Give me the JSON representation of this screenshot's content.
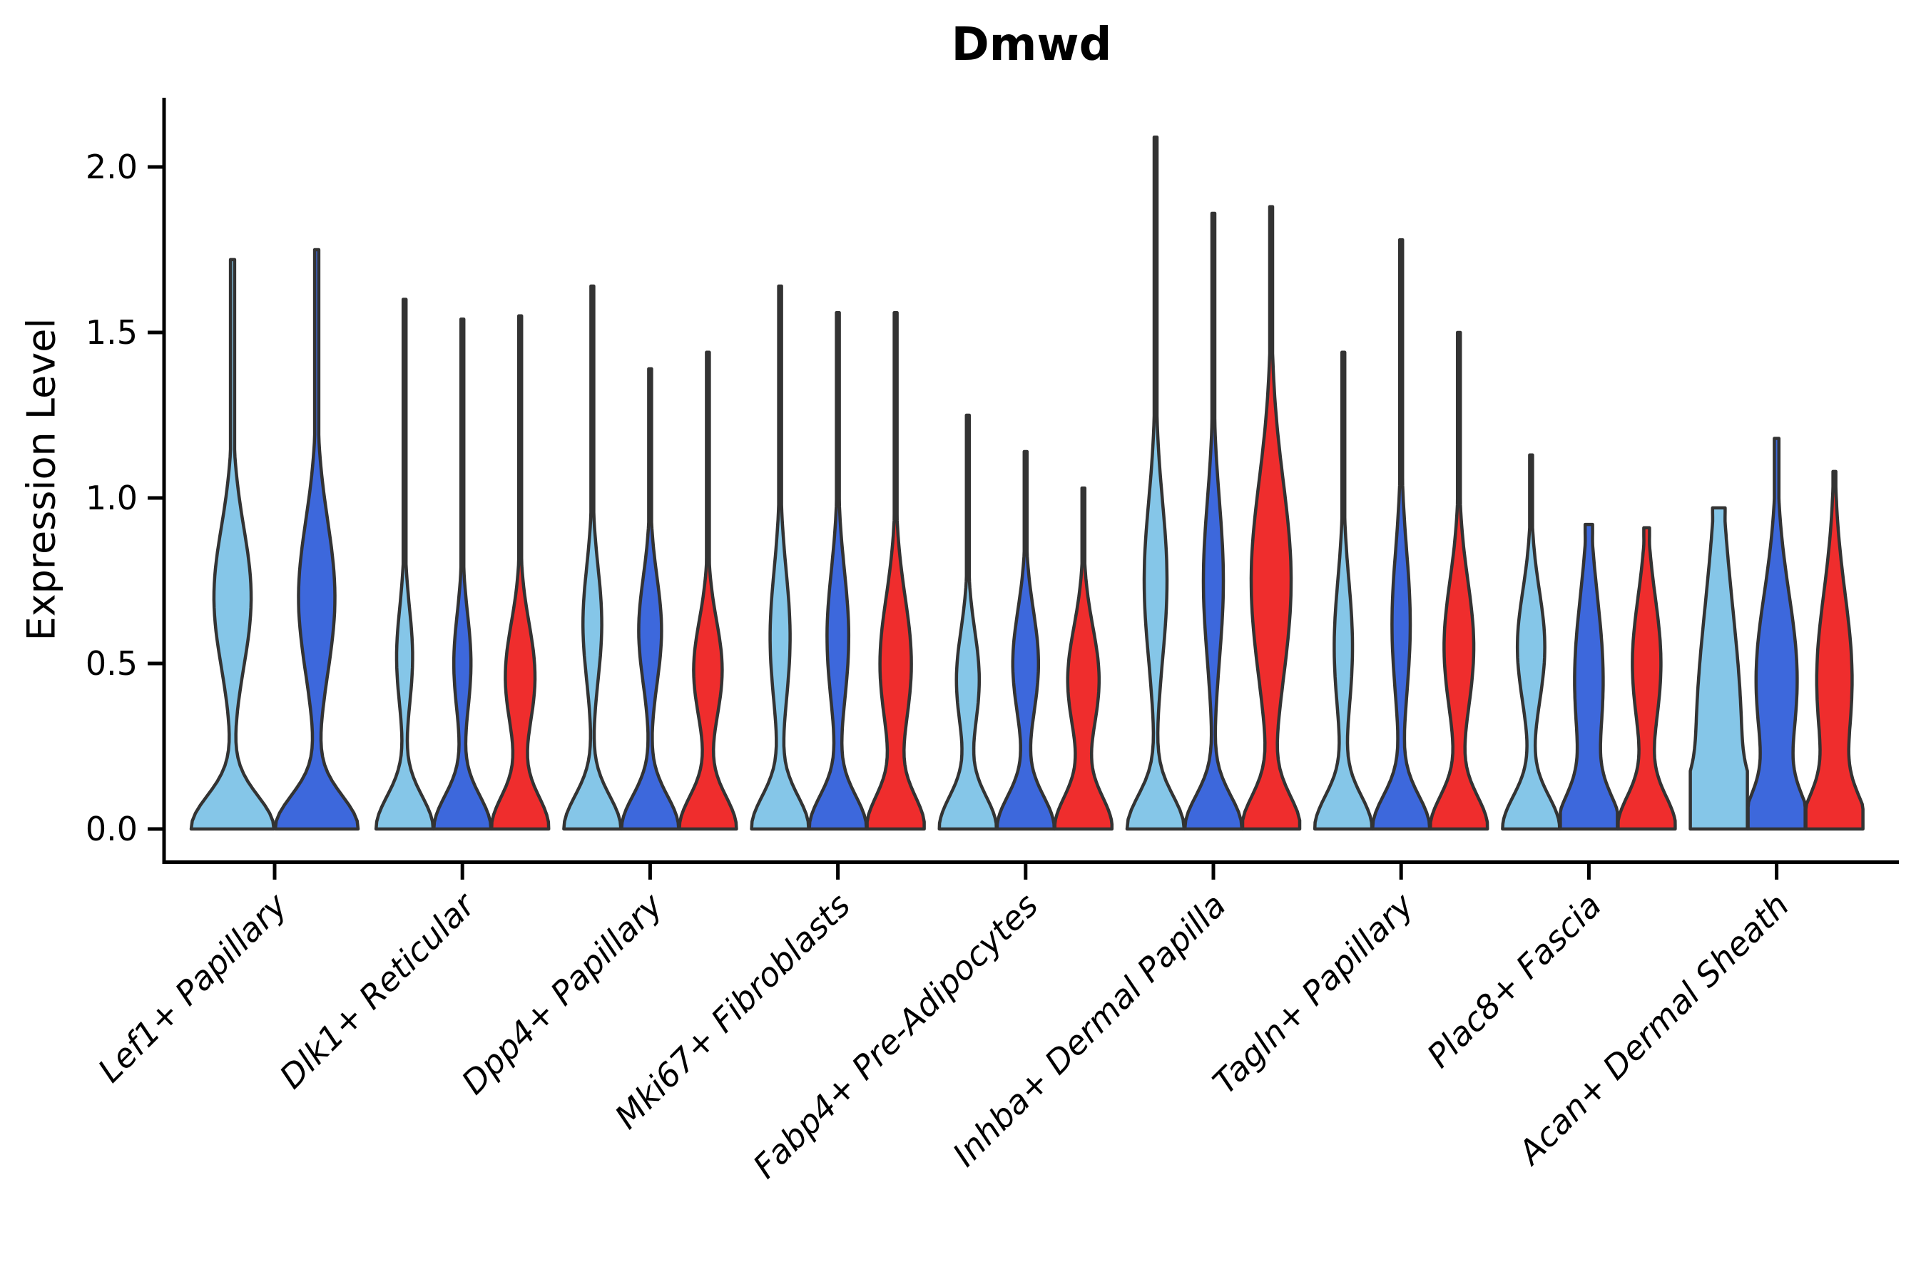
{
  "title": "Dmwd",
  "y_axis": {
    "label": "Expression Level",
    "ticks": [
      {
        "label": "0.0",
        "value": 0.0
      },
      {
        "label": "0.5",
        "value": 0.5
      },
      {
        "label": "1.0",
        "value": 1.0
      },
      {
        "label": "1.5",
        "value": 1.5
      },
      {
        "label": "2.0",
        "value": 2.0
      }
    ]
  },
  "palette": {
    "skyblue": "#85C6E8",
    "royalblue": "#3D68DC",
    "red": "#EF2D2D",
    "outline": "#333333",
    "axis": "#000000"
  },
  "chart_data": {
    "type": "violin",
    "title": "Dmwd",
    "ylabel": "Expression Level",
    "ylim": [
      -0.1,
      2.2
    ],
    "yticks": [
      0.0,
      0.5,
      1.0,
      1.5,
      2.0
    ],
    "grid": false,
    "legend": "none",
    "categories": [
      "Lef1+ Papillary",
      "Dlk1+ Reticular",
      "Dpp4+ Papillary",
      "Mki67+ Fibroblasts",
      "Fabp4+ Pre-Adipocytes",
      "Inhba+ Dermal Papilla",
      "Tagln+ Papillary",
      "Plac8+ Fascia",
      "Acan+ Dermal Sheath"
    ],
    "groups": [
      {
        "category": "Lef1+ Papillary",
        "violins": [
          {
            "color": "skyblue",
            "max": 1.72,
            "bulge": {
              "center": 0.7,
              "amp": 0.45,
              "sigma": 0.21
            }
          },
          {
            "color": "royalblue",
            "max": 1.75,
            "bulge": {
              "center": 0.7,
              "amp": 0.44,
              "sigma": 0.23
            }
          }
        ]
      },
      {
        "category": "Dlk1+ Reticular",
        "violins": [
          {
            "color": "skyblue",
            "max": 1.6,
            "bulge": {
              "center": 0.52,
              "amp": 0.28,
              "sigma": 0.15
            }
          },
          {
            "color": "royalblue",
            "max": 1.54,
            "bulge": {
              "center": 0.5,
              "amp": 0.3,
              "sigma": 0.15
            }
          },
          {
            "color": "red",
            "max": 1.55,
            "bulge": {
              "center": 0.46,
              "amp": 0.52,
              "sigma": 0.16
            }
          }
        ]
      },
      {
        "category": "Dpp4+ Papillary",
        "violins": [
          {
            "color": "skyblue",
            "max": 1.64,
            "bulge": {
              "center": 0.62,
              "amp": 0.33,
              "sigma": 0.17
            }
          },
          {
            "color": "royalblue",
            "max": 1.39,
            "bulge": {
              "center": 0.6,
              "amp": 0.4,
              "sigma": 0.16
            }
          },
          {
            "color": "red",
            "max": 1.44,
            "bulge": {
              "center": 0.48,
              "amp": 0.5,
              "sigma": 0.15
            }
          }
        ]
      },
      {
        "category": "Mki67+ Fibroblasts",
        "violins": [
          {
            "color": "skyblue",
            "max": 1.64,
            "bulge": {
              "center": 0.58,
              "amp": 0.35,
              "sigma": 0.2
            }
          },
          {
            "color": "royalblue",
            "max": 1.56,
            "bulge": {
              "center": 0.58,
              "amp": 0.38,
              "sigma": 0.2
            }
          },
          {
            "color": "red",
            "max": 1.56,
            "bulge": {
              "center": 0.5,
              "amp": 0.55,
              "sigma": 0.2
            }
          }
        ]
      },
      {
        "category": "Fabp4+ Pre-Adipocytes",
        "violins": [
          {
            "color": "skyblue",
            "max": 1.25,
            "bulge": {
              "center": 0.45,
              "amp": 0.4,
              "sigma": 0.15
            }
          },
          {
            "color": "royalblue",
            "max": 1.14,
            "bulge": {
              "center": 0.5,
              "amp": 0.45,
              "sigma": 0.16
            }
          },
          {
            "color": "red",
            "max": 1.03,
            "bulge": {
              "center": 0.45,
              "amp": 0.55,
              "sigma": 0.16
            }
          }
        ]
      },
      {
        "category": "Inhba+ Dermal Papilla",
        "violins": [
          {
            "color": "skyblue",
            "max": 2.09,
            "bulge": {
              "center": 0.75,
              "amp": 0.4,
              "sigma": 0.24
            }
          },
          {
            "color": "royalblue",
            "max": 1.86,
            "bulge": {
              "center": 0.75,
              "amp": 0.35,
              "sigma": 0.24
            }
          },
          {
            "color": "red",
            "max": 1.88,
            "bulge": {
              "center": 0.75,
              "amp": 0.7,
              "sigma": 0.3
            }
          }
        ]
      },
      {
        "category": "Tagln+ Papillary",
        "violins": [
          {
            "color": "skyblue",
            "max": 1.44,
            "bulge": {
              "center": 0.55,
              "amp": 0.32,
              "sigma": 0.2
            }
          },
          {
            "color": "royalblue",
            "max": 1.78,
            "bulge": {
              "center": 0.62,
              "amp": 0.32,
              "sigma": 0.22
            }
          },
          {
            "color": "red",
            "max": 1.5,
            "bulge": {
              "center": 0.55,
              "amp": 0.52,
              "sigma": 0.2
            }
          }
        ]
      },
      {
        "category": "Plac8+ Fascia",
        "violins": [
          {
            "color": "skyblue",
            "max": 1.13,
            "bulge": {
              "center": 0.55,
              "amp": 0.48,
              "sigma": 0.17
            }
          },
          {
            "color": "royalblue",
            "max": 0.92,
            "bulge": {
              "center": 0.45,
              "amp": 0.5,
              "sigma": 0.25
            },
            "flat_top": 0.13
          },
          {
            "color": "red",
            "max": 0.91,
            "bulge": {
              "center": 0.5,
              "amp": 0.5,
              "sigma": 0.2
            },
            "flat_top": 0.1
          }
        ]
      },
      {
        "category": "Acan+ Dermal Sheath",
        "violins": [
          {
            "color": "skyblue",
            "max": 0.97,
            "bulge": {
              "center": 0.25,
              "amp": 0.8,
              "sigma": 0.42
            },
            "flat_top": 0.22
          },
          {
            "color": "royalblue",
            "max": 1.18,
            "bulge": {
              "center": 0.45,
              "amp": 0.72,
              "sigma": 0.26
            },
            "spike": 0.08
          },
          {
            "color": "red",
            "max": 1.08,
            "bulge": {
              "center": 0.45,
              "amp": 0.62,
              "sigma": 0.26
            }
          }
        ]
      }
    ]
  }
}
